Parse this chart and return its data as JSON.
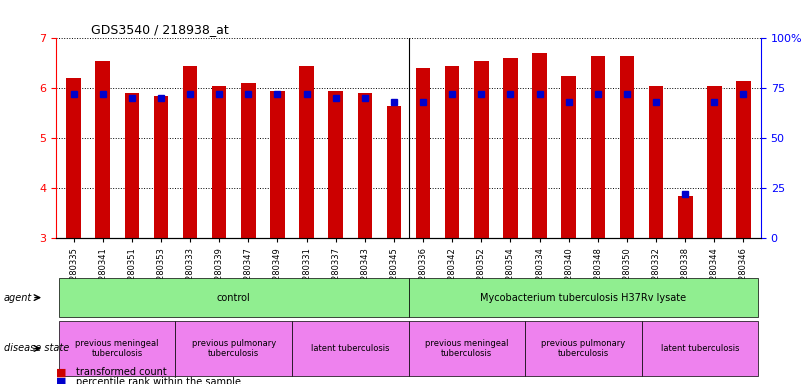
{
  "title": "GDS3540 / 218938_at",
  "samples": [
    "GSM280335",
    "GSM280341",
    "GSM280351",
    "GSM280353",
    "GSM280333",
    "GSM280339",
    "GSM280347",
    "GSM280349",
    "GSM280331",
    "GSM280337",
    "GSM280343",
    "GSM280345",
    "GSM280336",
    "GSM280342",
    "GSM280352",
    "GSM280354",
    "GSM280334",
    "GSM280340",
    "GSM280348",
    "GSM280350",
    "GSM280332",
    "GSM280338",
    "GSM280344",
    "GSM280346"
  ],
  "transformed_count": [
    6.2,
    6.55,
    5.9,
    5.85,
    6.45,
    6.05,
    6.1,
    5.95,
    6.45,
    5.95,
    5.9,
    5.65,
    6.4,
    6.45,
    6.55,
    6.6,
    6.7,
    6.25,
    6.65,
    6.65,
    6.05,
    3.85,
    6.05,
    6.15
  ],
  "percentile_rank": [
    72,
    72,
    70,
    70,
    72,
    72,
    72,
    72,
    72,
    70,
    70,
    68,
    68,
    72,
    72,
    72,
    72,
    68,
    72,
    72,
    68,
    22,
    68,
    72
  ],
  "ylim_left": [
    3,
    7
  ],
  "ylim_right": [
    0,
    100
  ],
  "yticks_left": [
    3,
    4,
    5,
    6,
    7
  ],
  "yticks_right": [
    0,
    25,
    50,
    75,
    100
  ],
  "bar_color": "#cc0000",
  "marker_color": "#0000cc",
  "grid_color": "#000000",
  "agent_groups": [
    {
      "label": "control",
      "start": 0,
      "end": 11,
      "color": "#90ee90"
    },
    {
      "label": "Mycobacterium tuberculosis H37Rv lysate",
      "start": 12,
      "end": 23,
      "color": "#90ee90"
    }
  ],
  "disease_groups": [
    {
      "label": "previous meningeal\ntuberculosis",
      "start": 0,
      "end": 3,
      "color": "#ee82ee"
    },
    {
      "label": "previous pulmonary\ntuberculosis",
      "start": 4,
      "end": 7,
      "color": "#ee82ee"
    },
    {
      "label": "latent tuberculosis",
      "start": 8,
      "end": 11,
      "color": "#ee82ee"
    },
    {
      "label": "previous meningeal\ntuberculosis",
      "start": 12,
      "end": 15,
      "color": "#ee82ee"
    },
    {
      "label": "previous pulmonary\ntuberculosis",
      "start": 16,
      "end": 19,
      "color": "#ee82ee"
    },
    {
      "label": "latent tuberculosis",
      "start": 20,
      "end": 23,
      "color": "#ee82ee"
    }
  ],
  "legend_items": [
    {
      "label": "transformed count",
      "color": "#cc0000",
      "marker": "s"
    },
    {
      "label": "percentile rank within the sample",
      "color": "#0000cc",
      "marker": "s"
    }
  ]
}
